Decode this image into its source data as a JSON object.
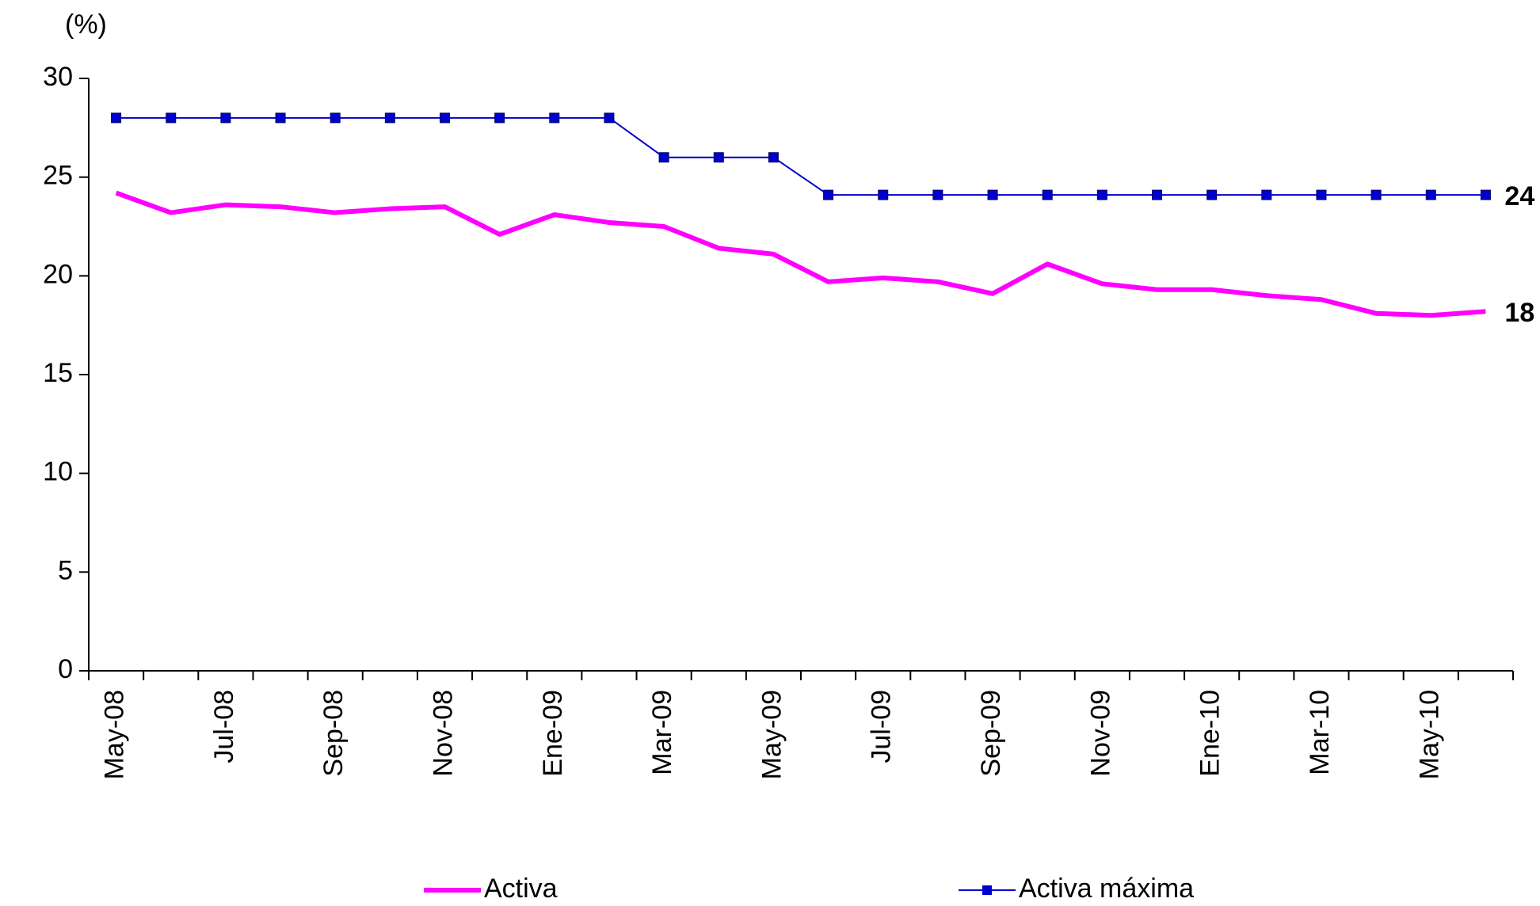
{
  "chart_data": {
    "type": "line",
    "y_unit_label": "(%)",
    "categories": [
      "May-08",
      null,
      "Jul-08",
      null,
      "Sep-08",
      null,
      "Nov-08",
      null,
      "Ene-09",
      null,
      "Mar-09",
      null,
      "May-09",
      null,
      "Jul-09",
      null,
      "Sep-09",
      null,
      "Nov-09",
      null,
      "Ene-10",
      null,
      "Mar-10",
      null,
      "May-10",
      null
    ],
    "series": [
      {
        "name": "Activa",
        "color": "#ff00ff",
        "marker": false,
        "end_label": "18",
        "values": [
          24.2,
          23.2,
          23.6,
          23.5,
          23.2,
          23.4,
          23.5,
          22.1,
          23.1,
          22.7,
          22.5,
          21.4,
          21.1,
          19.7,
          19.9,
          19.7,
          19.1,
          20.6,
          19.6,
          19.3,
          19.3,
          19.0,
          18.8,
          18.1,
          18.0,
          18.2
        ]
      },
      {
        "name": "Activa máxima",
        "color": "#0000cc",
        "marker": true,
        "end_label": "24",
        "values": [
          28,
          28,
          28,
          28,
          28,
          28,
          28,
          28,
          28,
          28,
          26,
          26,
          26,
          24.1,
          24.1,
          24.1,
          24.1,
          24.1,
          24.1,
          24.1,
          24.1,
          24.1,
          24.1,
          24.1,
          24.1,
          24.1
        ]
      }
    ],
    "ylim": [
      0,
      30
    ],
    "yticks": [
      0,
      5,
      10,
      15,
      20,
      25,
      30
    ],
    "grid": false
  }
}
